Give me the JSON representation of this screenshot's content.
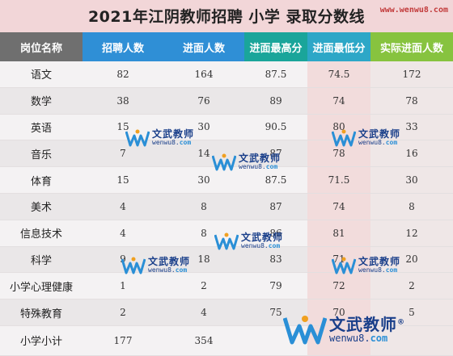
{
  "title": "2021年江阴教师招聘  小学 录取分数线",
  "site_tag": "www.wenwu8.com",
  "headers": [
    "岗位名称",
    "招聘人数",
    "进面人数",
    "进面最高分",
    "进面最低分",
    "实际进面人数"
  ],
  "rows": [
    {
      "name": "语文",
      "recruit": "82",
      "interview": "164",
      "max": "87.5",
      "min": "74.5",
      "actual": "172"
    },
    {
      "name": "数学",
      "recruit": "38",
      "interview": "76",
      "max": "89",
      "min": "74",
      "actual": "78"
    },
    {
      "name": "英语",
      "recruit": "15",
      "interview": "30",
      "max": "90.5",
      "min": "80",
      "actual": "33"
    },
    {
      "name": "音乐",
      "recruit": "7",
      "interview": "14",
      "max": "87",
      "min": "78",
      "actual": "16"
    },
    {
      "name": "体育",
      "recruit": "15",
      "interview": "30",
      "max": "87.5",
      "min": "71.5",
      "actual": "30"
    },
    {
      "name": "美术",
      "recruit": "4",
      "interview": "8",
      "max": "87",
      "min": "74",
      "actual": "8"
    },
    {
      "name": "信息技术",
      "recruit": "4",
      "interview": "8",
      "max": "86",
      "min": "81",
      "actual": "12"
    },
    {
      "name": "科学",
      "recruit": "9",
      "interview": "18",
      "max": "83",
      "min": "71",
      "actual": "20"
    },
    {
      "name": "小学心理健康",
      "recruit": "1",
      "interview": "2",
      "max": "79",
      "min": "72",
      "actual": "2"
    },
    {
      "name": "特殊教育",
      "recruit": "2",
      "interview": "4",
      "max": "75",
      "min": "70",
      "actual": "5"
    }
  ],
  "total": {
    "name": "小学小计",
    "recruit": "177",
    "interview": "354",
    "max": "",
    "min": "",
    "actual": ""
  },
  "watermark": {
    "cn": "文武教师",
    "en_prefix": "wenwu8.",
    "en_suffix": "com",
    "registered": "®"
  },
  "colors": {
    "header_name": "#6f6f6f",
    "header_blue": "#2f8fd6",
    "header_teal": "#1aa59a",
    "header_min": "#2da7c7",
    "header_green": "#87c33f",
    "title_bg": "#f2d6d8"
  }
}
